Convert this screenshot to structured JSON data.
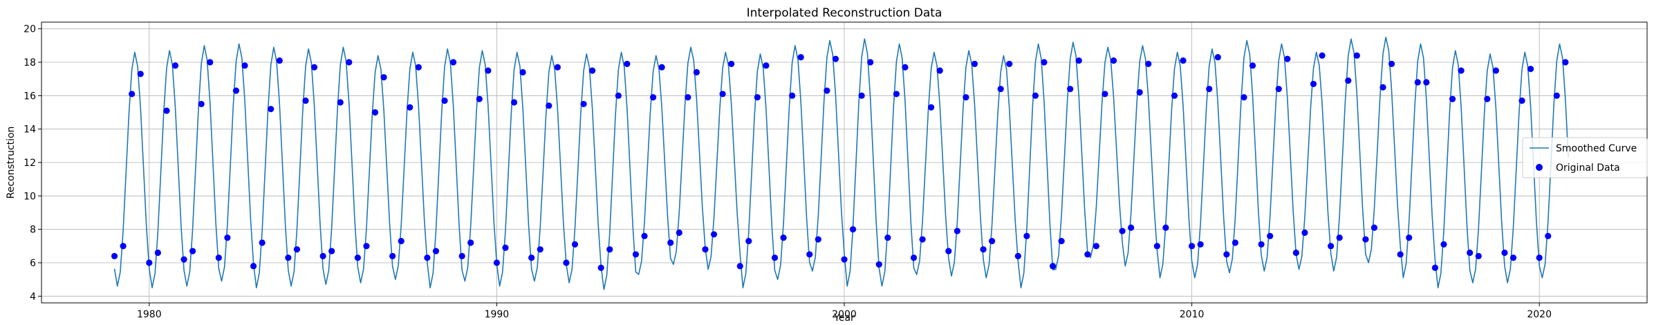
{
  "chart_data": {
    "type": "line",
    "title": "Interpolated Reconstruction Data",
    "xlabel": "Year",
    "ylabel": "Reconstruction",
    "xlim": [
      1976.9,
      2023.1
    ],
    "ylim": [
      3.6,
      20.4
    ],
    "xticks": [
      1980,
      1990,
      2000,
      2010,
      2020
    ],
    "yticks": [
      4,
      6,
      8,
      10,
      12,
      14,
      16,
      18,
      20
    ],
    "grid": true,
    "legend_position": "center right",
    "colors": {
      "line": "#1f77b4",
      "points": "#0000ff",
      "grid": "#b0b0b0"
    },
    "series": [
      {
        "name": "Smoothed Curve",
        "kind": "line",
        "x_start": 1979.0,
        "x_end": 2020.9,
        "points_per_year": 12,
        "annual_peak": [
          18.6,
          18.7,
          19.0,
          19.1,
          18.9,
          18.8,
          18.9,
          18.4,
          18.6,
          18.8,
          18.7,
          18.6,
          18.4,
          18.5,
          18.6,
          18.4,
          18.9,
          18.6,
          18.5,
          19.0,
          19.3,
          19.4,
          19.1,
          18.6,
          18.7,
          18.4,
          19.1,
          19.2,
          18.9,
          19.0,
          18.6,
          18.8,
          19.3,
          19.1,
          18.6,
          19.4,
          19.5,
          19.1,
          18.7,
          18.5,
          18.6,
          19.1
        ],
        "annual_trough": [
          4.6,
          4.5,
          4.6,
          4.9,
          4.5,
          4.6,
          4.7,
          4.8,
          5.0,
          4.5,
          4.9,
          4.6,
          4.9,
          4.8,
          4.4,
          5.3,
          5.9,
          5.6,
          4.5,
          5.0,
          5.5,
          4.6,
          4.6,
          5.3,
          5.2,
          5.1,
          4.5,
          5.6,
          6.3,
          5.8,
          5.1,
          5.1,
          5.4,
          5.5,
          5.6,
          5.5,
          6.0,
          5.1,
          4.5,
          4.8,
          4.8,
          5.1
        ]
      },
      {
        "name": "Original Data",
        "kind": "scatter",
        "x": [
          1979.0,
          1979.25,
          1979.5,
          1979.75,
          1980.0,
          1980.25,
          1980.5,
          1980.75,
          1981.0,
          1981.25,
          1981.5,
          1981.75,
          1982.0,
          1982.25,
          1982.5,
          1982.75,
          1983.0,
          1983.25,
          1983.5,
          1983.75,
          1984.0,
          1984.25,
          1984.5,
          1984.75,
          1985.0,
          1985.25,
          1985.5,
          1985.75,
          1986.0,
          1986.25,
          1986.5,
          1986.75,
          1987.0,
          1987.25,
          1987.5,
          1987.75,
          1988.0,
          1988.25,
          1988.5,
          1988.75,
          1989.0,
          1989.25,
          1989.5,
          1989.75,
          1990.0,
          1990.25,
          1990.5,
          1990.75,
          1991.0,
          1991.25,
          1991.5,
          1991.75,
          1992.0,
          1992.25,
          1992.5,
          1992.75,
          1993.0,
          1993.25,
          1993.5,
          1993.75,
          1994.0,
          1994.25,
          1994.5,
          1994.75,
          1995.0,
          1995.25,
          1995.5,
          1995.75,
          1996.0,
          1996.25,
          1996.5,
          1996.75,
          1997.0,
          1997.25,
          1997.5,
          1997.75,
          1998.0,
          1998.25,
          1998.5,
          1998.75,
          1999.0,
          1999.25,
          1999.5,
          1999.75,
          2000.0,
          2000.25,
          2000.5,
          2000.75,
          2001.0,
          2001.25,
          2001.5,
          2001.75,
          2002.0,
          2002.25,
          2002.5,
          2002.75,
          2003.0,
          2003.25,
          2003.5,
          2003.75,
          2004.0,
          2004.25,
          2004.5,
          2004.75,
          2005.0,
          2005.25,
          2005.5,
          2005.75,
          2006.0,
          2006.25,
          2006.5,
          2006.75,
          2007.0,
          2007.25,
          2007.5,
          2007.75,
          2008.0,
          2008.25,
          2008.5,
          2008.75,
          2009.0,
          2009.25,
          2009.5,
          2009.75,
          2010.0,
          2010.25,
          2010.5,
          2010.75,
          2011.0,
          2011.25,
          2011.5,
          2011.75,
          2012.0,
          2012.25,
          2012.5,
          2012.75,
          2013.0,
          2013.25,
          2013.5,
          2013.75,
          2014.0,
          2014.25,
          2014.5,
          2014.75,
          2015.0,
          2015.25,
          2015.5,
          2015.75,
          2016.0,
          2016.25,
          2016.5,
          2016.75,
          2017.0,
          2017.25,
          2017.5,
          2017.75,
          2018.0,
          2018.25,
          2018.5,
          2018.75,
          2019.0,
          2019.25,
          2019.5,
          2019.75,
          2020.0,
          2020.25,
          2020.5,
          2020.75
        ],
        "y": [
          6.4,
          7.0,
          16.1,
          17.3,
          6.0,
          6.6,
          15.1,
          17.8,
          6.2,
          6.7,
          15.5,
          18.0,
          6.3,
          7.5,
          16.3,
          17.8,
          5.8,
          7.2,
          15.2,
          18.1,
          6.3,
          6.8,
          15.7,
          17.7,
          6.4,
          6.7,
          15.6,
          18.0,
          6.3,
          7.0,
          15.0,
          17.1,
          6.4,
          7.3,
          15.3,
          17.7,
          6.3,
          6.7,
          15.7,
          18.0,
          6.4,
          7.2,
          15.8,
          17.5,
          6.0,
          6.9,
          15.6,
          17.4,
          6.3,
          6.8,
          15.4,
          17.7,
          6.0,
          7.1,
          15.5,
          17.5,
          5.7,
          6.8,
          16.0,
          17.9,
          6.5,
          7.6,
          15.9,
          17.7,
          7.2,
          7.8,
          15.9,
          17.4,
          6.8,
          7.7,
          16.1,
          17.9,
          5.8,
          7.3,
          15.9,
          17.8,
          6.3,
          7.5,
          16.0,
          18.3,
          6.5,
          7.4,
          16.3,
          18.2,
          6.2,
          8.0,
          16.0,
          18.0,
          5.9,
          7.5,
          16.1,
          17.7,
          6.3,
          7.4,
          15.3,
          17.5,
          6.7,
          7.9,
          15.9,
          17.9,
          6.8,
          7.3,
          16.4,
          17.9,
          6.4,
          7.6,
          16.0,
          18.0,
          5.8,
          7.3,
          16.4,
          18.1,
          6.5,
          7.0,
          16.1,
          18.1,
          7.9,
          8.1,
          16.2,
          17.9,
          7.0,
          8.1,
          16.0,
          18.1,
          7.0,
          7.1,
          16.4,
          18.3,
          6.5,
          7.2,
          15.9,
          17.8,
          7.1,
          7.6,
          16.4,
          18.2,
          6.6,
          7.8,
          16.7,
          18.4,
          7.0,
          7.5,
          16.9,
          18.4,
          7.4,
          8.1,
          16.5,
          17.9,
          6.5,
          7.5,
          16.8,
          16.8,
          5.7,
          7.1,
          15.8,
          17.5,
          6.6,
          6.4,
          15.8,
          17.5,
          6.6,
          6.3,
          15.7,
          17.6,
          6.3,
          7.6,
          16.0,
          18.0
        ]
      }
    ]
  }
}
